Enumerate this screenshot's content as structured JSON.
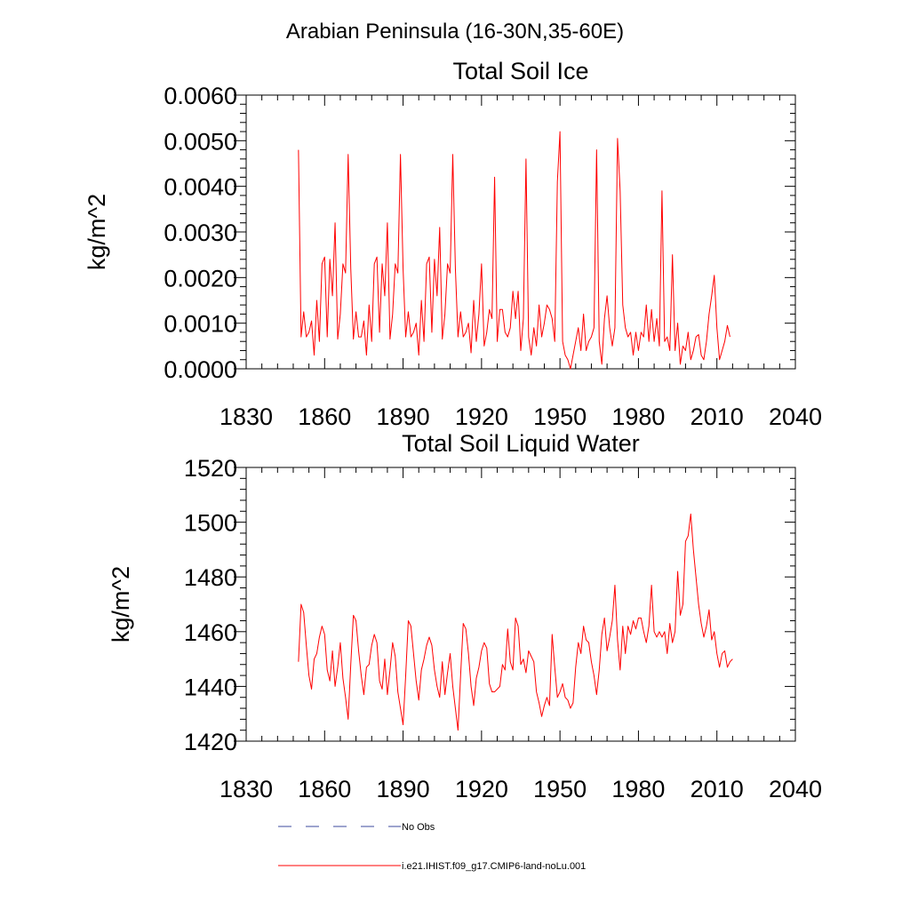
{
  "page_title": "Arabian Peninsula (16-30N,35-60E)",
  "legend": [
    {
      "label": "No Obs",
      "color": "#3b4a9e",
      "style": "dashed"
    },
    {
      "label": "i.e21.IHIST.f09_g17.CMIP6-land-noLu.001",
      "color": "#ff0000",
      "style": "solid"
    }
  ],
  "chart_data": [
    {
      "type": "line",
      "title": "Total Soil Ice",
      "xlabel": "",
      "ylabel": "kg/m^2",
      "xlim": [
        1830,
        2040
      ],
      "ylim": [
        0,
        0.006
      ],
      "x_ticks": [
        "1830",
        "1860",
        "1890",
        "1920",
        "1950",
        "1980",
        "2010",
        "2040"
      ],
      "y_ticks": [
        "0.0000",
        "0.0010",
        "0.0020",
        "0.0030",
        "0.0040",
        "0.0050",
        "0.0060"
      ],
      "grid": false,
      "x_start": 1850,
      "series": [
        {
          "color": "#ff0000",
          "values": [
            0.0048,
            0.0007,
            0.00125,
            0.0007,
            0.0008,
            0.00105,
            0.0003,
            0.0015,
            0.0006,
            0.0023,
            0.00245,
            0.0007,
            0.0024,
            0.0016,
            0.0032,
            0.00065,
            0.0012,
            0.0023,
            0.0021,
            0.0047,
            0.0022,
            0.00065,
            0.00125,
            0.0007,
            0.0007,
            0.00105,
            0.0003,
            0.0014,
            0.0006,
            0.0023,
            0.00245,
            0.0008,
            0.0023,
            0.0016,
            0.0032,
            0.00065,
            0.0012,
            0.0023,
            0.0021,
            0.0047,
            0.0022,
            0.0007,
            0.00125,
            0.0007,
            0.0008,
            0.001,
            0.0003,
            0.0015,
            0.0006,
            0.0023,
            0.00245,
            0.0008,
            0.0024,
            0.0016,
            0.0031,
            0.00065,
            0.0012,
            0.0023,
            0.0021,
            0.0047,
            0.0022,
            0.0007,
            0.00125,
            0.0007,
            0.0008,
            0.001,
            0.00035,
            0.0015,
            0.0006,
            0.0012,
            0.0023,
            0.0005,
            0.0008,
            0.0013,
            0.0011,
            0.0042,
            0.0006,
            0.0013,
            0.0013,
            0.0008,
            0.0007,
            0.0009,
            0.0017,
            0.0011,
            0.0017,
            0.0004,
            0.0011,
            0.0046,
            0.0007,
            0.0003,
            0.0009,
            0.0005,
            0.0014,
            0.0007,
            0.001,
            0.0014,
            0.0013,
            0.0011,
            0.0006,
            0.0041,
            0.0052,
            0.0006,
            0.0003,
            0.0002,
            0.0,
            0.0003,
            0.0006,
            0.0009,
            0.0004,
            0.0012,
            0.0004,
            0.0006,
            0.0007,
            0.0009,
            0.0048,
            0.0006,
            0.0001,
            0.0011,
            0.0016,
            0.0009,
            0.0005,
            0.0009,
            0.00505,
            0.0039,
            0.0014,
            0.0009,
            0.0007,
            0.0008,
            0.0003,
            0.0008,
            0.0004,
            0.0008,
            0.0007,
            0.0014,
            0.0006,
            0.0013,
            0.0006,
            0.0011,
            0.0005,
            0.0039,
            0.0006,
            0.0007,
            0.0004,
            0.0025,
            0.0004,
            0.001,
            0.0001,
            0.0005,
            0.0004,
            0.0008,
            0.0002,
            0.0004,
            0.0007,
            0.00075,
            0.0003,
            0.0002,
            0.0006,
            0.0012,
            0.0016,
            0.00205,
            0.0009,
            0.0002,
            0.0004,
            0.0006,
            0.00095,
            0.0007
          ]
        }
      ]
    },
    {
      "type": "line",
      "title": "Total Soil Liquid Water",
      "xlabel": "",
      "ylabel": "kg/m^2",
      "xlim": [
        1830,
        2040
      ],
      "ylim": [
        1420,
        1520
      ],
      "x_ticks": [
        "1830",
        "1860",
        "1890",
        "1920",
        "1950",
        "1980",
        "2010",
        "2040"
      ],
      "y_ticks": [
        "1420",
        "1440",
        "1460",
        "1480",
        "1500",
        "1520"
      ],
      "grid": false,
      "x_start": 1850,
      "series": [
        {
          "color": "#ff0000",
          "values": [
            1449,
            1470,
            1467,
            1455,
            1444,
            1439,
            1450,
            1452,
            1458,
            1462,
            1459,
            1446,
            1442,
            1453,
            1440,
            1447,
            1456,
            1443,
            1436,
            1428,
            1448,
            1466,
            1464,
            1453,
            1444,
            1437,
            1447,
            1448,
            1455,
            1459,
            1456,
            1442,
            1439,
            1450,
            1437,
            1446,
            1456,
            1451,
            1438,
            1432,
            1426,
            1444,
            1464,
            1462,
            1452,
            1442,
            1435,
            1446,
            1450,
            1455,
            1458,
            1455,
            1446,
            1440,
            1436,
            1449,
            1437,
            1445,
            1452,
            1440,
            1432,
            1424,
            1444,
            1463,
            1461,
            1452,
            1440,
            1433,
            1443,
            1447,
            1453,
            1456,
            1454,
            1441,
            1438,
            1438,
            1439,
            1440,
            1448,
            1446,
            1461,
            1449,
            1446,
            1465,
            1462,
            1448,
            1450,
            1445,
            1453,
            1451,
            1449,
            1438,
            1434,
            1429,
            1433,
            1436,
            1433,
            1459,
            1447,
            1436,
            1438,
            1441,
            1436,
            1435,
            1432,
            1434,
            1447,
            1456,
            1452,
            1462,
            1457,
            1456,
            1449,
            1444,
            1437,
            1446,
            1459,
            1465,
            1453,
            1458,
            1464,
            1477,
            1457,
            1446,
            1462,
            1452,
            1462,
            1459,
            1464,
            1461,
            1465,
            1465,
            1460,
            1456,
            1462,
            1477,
            1460,
            1458,
            1460,
            1458,
            1460,
            1452,
            1463,
            1456,
            1460,
            1482,
            1466,
            1470,
            1493,
            1495,
            1503,
            1490,
            1480,
            1470,
            1463,
            1458,
            1462,
            1468,
            1457,
            1460,
            1452,
            1447,
            1452,
            1453,
            1447,
            1449,
            1450
          ]
        }
      ]
    }
  ]
}
